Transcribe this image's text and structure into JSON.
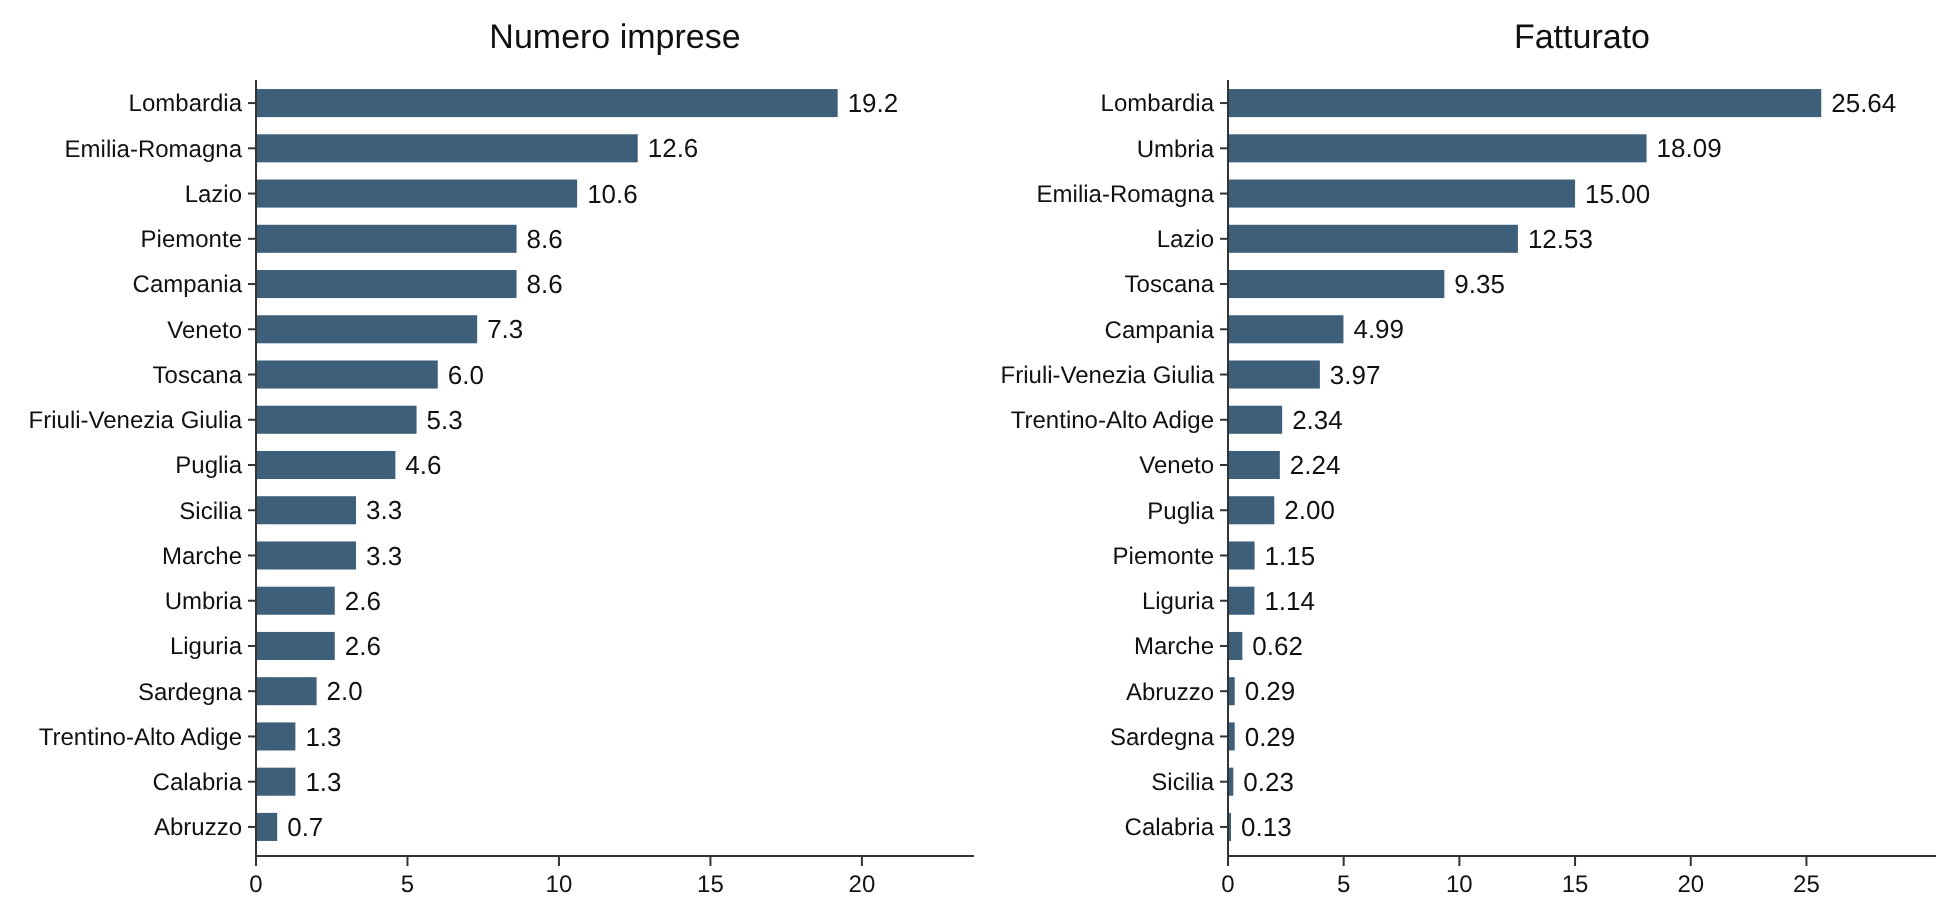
{
  "chart_data": [
    {
      "type": "bar",
      "orientation": "horizontal",
      "title": "Numero imprese",
      "categories": [
        "Lombardia",
        "Emilia-Romagna",
        "Lazio",
        "Piemonte",
        "Campania",
        "Veneto",
        "Toscana",
        "Friuli-Venezia Giulia",
        "Puglia",
        "Sicilia",
        "Marche",
        "Umbria",
        "Liguria",
        "Sardegna",
        "Trentino-Alto Adige",
        "Calabria",
        "Abruzzo"
      ],
      "values": [
        19.2,
        12.6,
        10.6,
        8.6,
        8.6,
        7.3,
        6.0,
        5.3,
        4.6,
        3.3,
        3.3,
        2.6,
        2.6,
        2.0,
        1.3,
        1.3,
        0.7
      ],
      "value_labels": [
        "19.2",
        "12.6",
        "10.6",
        "8.6",
        "8.6",
        "7.3",
        "6.0",
        "5.3",
        "4.6",
        "3.3",
        "3.3",
        "2.6",
        "2.6",
        "2.0",
        "1.3",
        "1.3",
        "0.7"
      ],
      "color": "#3e5f79",
      "xlim": [
        0,
        23.7
      ],
      "xticks": [
        0,
        5,
        10,
        15,
        20
      ],
      "grid": false
    },
    {
      "type": "bar",
      "orientation": "horizontal",
      "title": "Fatturato",
      "categories": [
        "Lombardia",
        "Umbria",
        "Emilia-Romagna",
        "Lazio",
        "Toscana",
        "Campania",
        "Friuli-Venezia Giulia",
        "Trentino-Alto Adige",
        "Veneto",
        "Puglia",
        "Piemonte",
        "Liguria",
        "Marche",
        "Abruzzo",
        "Sardegna",
        "Sicilia",
        "Calabria"
      ],
      "values": [
        25.64,
        18.09,
        15.0,
        12.53,
        9.35,
        4.99,
        3.97,
        2.34,
        2.24,
        2.0,
        1.15,
        1.14,
        0.62,
        0.29,
        0.29,
        0.23,
        0.13
      ],
      "value_labels": [
        "25.64",
        "18.09",
        "15.00",
        "12.53",
        "9.35",
        "4.99",
        "3.97",
        "2.34",
        "2.24",
        "2.00",
        "1.15",
        "1.14",
        "0.62",
        "0.29",
        "0.29",
        "0.23",
        "0.13"
      ],
      "color": "#3e5f79",
      "xlim": [
        0,
        30.6
      ],
      "xticks": [
        0,
        5,
        10,
        15,
        20,
        25
      ],
      "grid": false
    }
  ]
}
